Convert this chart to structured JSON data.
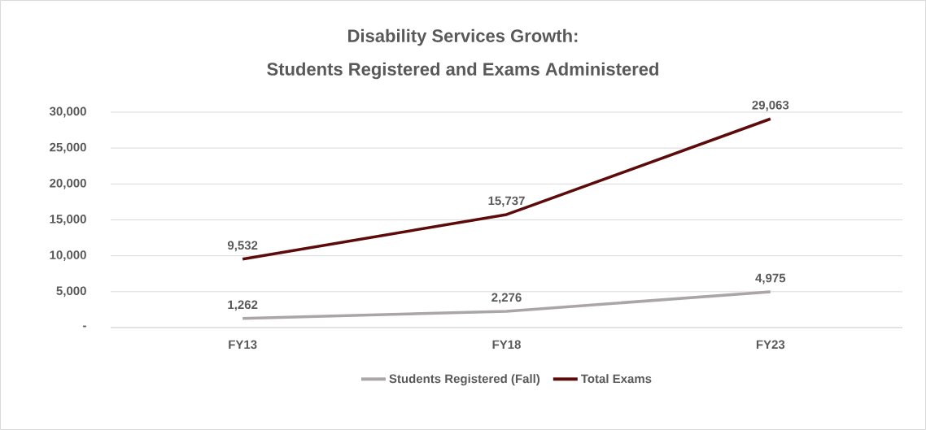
{
  "chart_data": {
    "type": "line",
    "title": "Disability Services Growth:",
    "subtitle": "Students Registered and Exams Administered",
    "categories": [
      "FY13",
      "FY18",
      "FY23"
    ],
    "series": [
      {
        "name": "Students Registered (Fall)",
        "color": "#aaa6a7",
        "values": [
          1262,
          2276,
          4975
        ],
        "value_labels": [
          "1,262",
          "2,276",
          "4,975"
        ]
      },
      {
        "name": "Total Exams",
        "color": "#5c0a0a",
        "values": [
          9532,
          15737,
          29063
        ],
        "value_labels": [
          "9,532",
          "15,737",
          "29,063"
        ]
      }
    ],
    "ylim": [
      0,
      30000
    ],
    "yticks": [
      {
        "value": 0,
        "label": "-"
      },
      {
        "value": 5000,
        "label": "5,000"
      },
      {
        "value": 10000,
        "label": "10,000"
      },
      {
        "value": 15000,
        "label": "15,000"
      },
      {
        "value": 20000,
        "label": "20,000"
      },
      {
        "value": 25000,
        "label": "25,000"
      },
      {
        "value": 30000,
        "label": "30,000"
      }
    ],
    "grid": "y",
    "legend": "bottom",
    "marker": "none",
    "line_style": "solid"
  }
}
